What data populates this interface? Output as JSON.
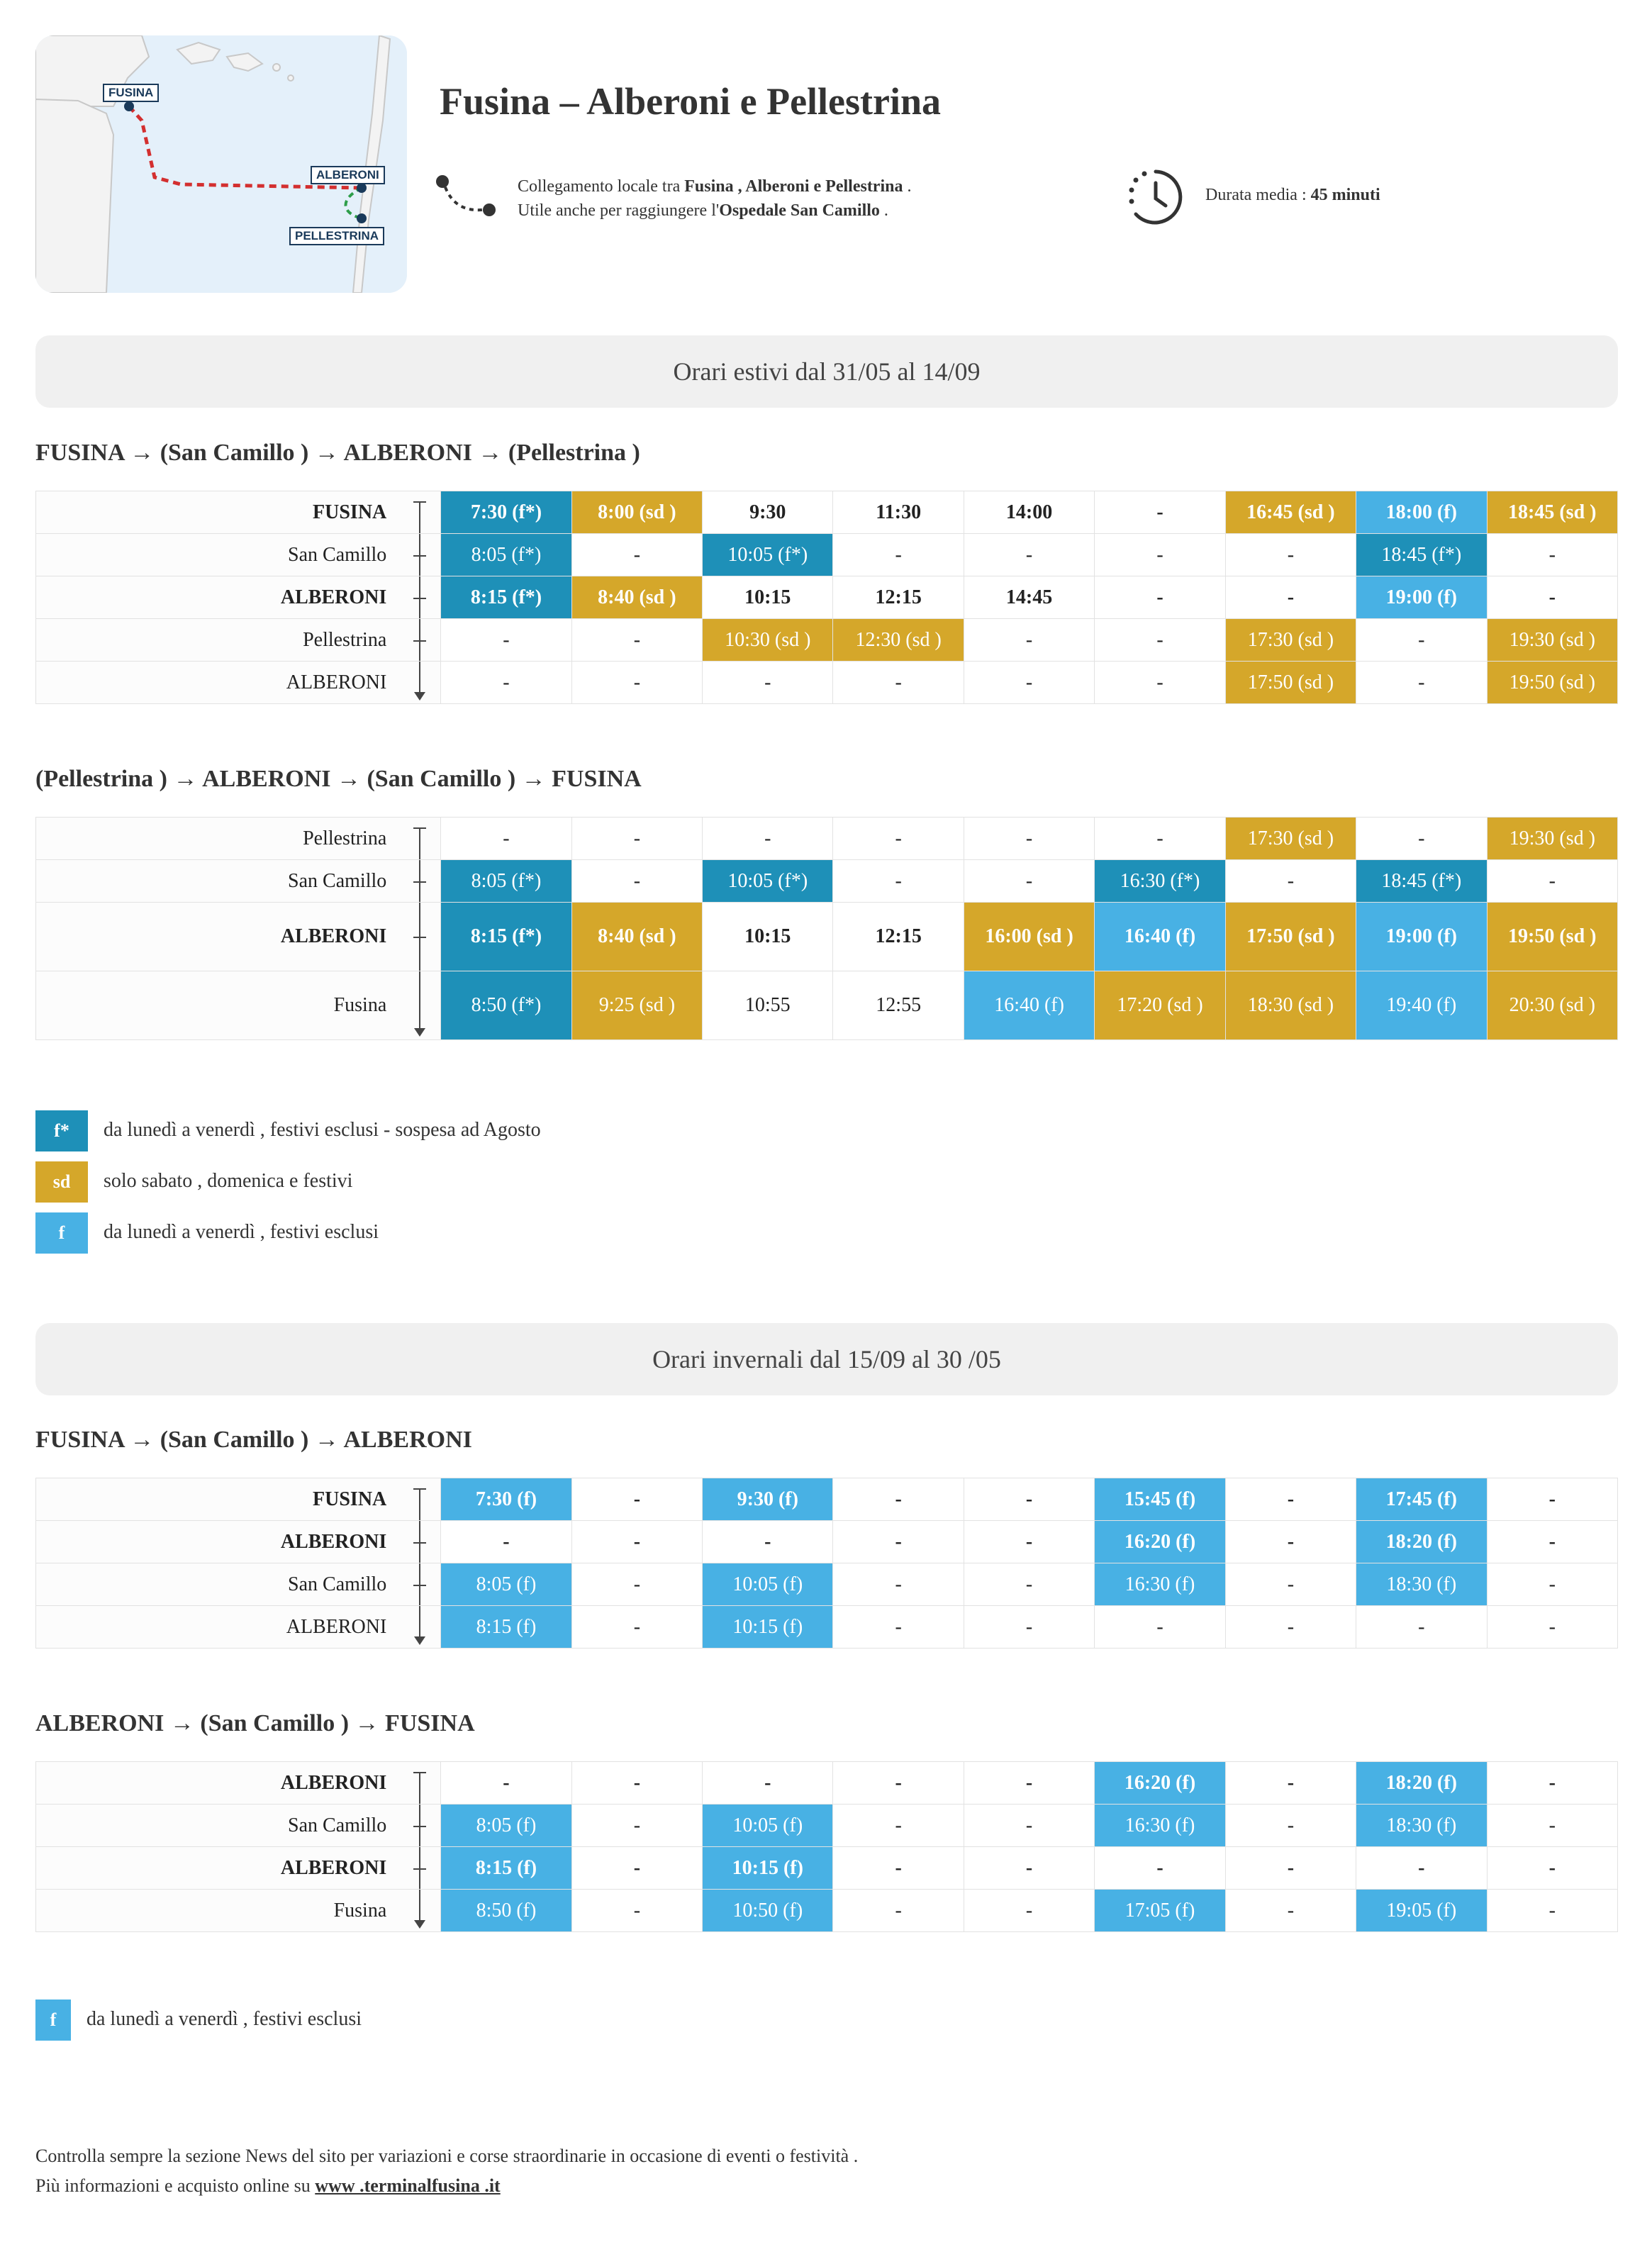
{
  "map": {
    "labels": [
      "FUSINA",
      "ALBERONI",
      "PELLESTRINA"
    ]
  },
  "header": {
    "title": "Fusina – Alberoni e Pellestrina",
    "info_line1_pre": "Collegamento locale tra ",
    "info_line1_bold": "Fusina , Alberoni e Pellestrina",
    "info_line1_post": " .",
    "info_line2_pre": "Utile anche per raggiungere l'",
    "info_line2_bold": "Ospedale San Camillo",
    "info_line2_post": " .",
    "duration_pre": "Durata media : ",
    "duration_bold": "45 minuti"
  },
  "summer": {
    "banner": "Orari estivi dal 31/05 al 14/09",
    "outbound_title": "FUSINA → (San Camillo ) → ALBERONI → (Pellestrina )",
    "outbound_rows": [
      {
        "stop": "FUSINA",
        "bold": true,
        "cells": [
          [
            "7:30 (f*)",
            "tl",
            1
          ],
          [
            "8:00 (sd )",
            "gd",
            1
          ],
          [
            "9:30",
            "",
            1
          ],
          [
            "11:30",
            "",
            1
          ],
          [
            "14:00",
            "",
            1
          ],
          [
            "-",
            "",
            1
          ],
          [
            "16:45 (sd )",
            "gd",
            1
          ],
          [
            "18:00 (f)",
            "lb",
            1
          ],
          [
            "18:45 (sd )",
            "gd",
            1
          ]
        ]
      },
      {
        "stop": "San Camillo",
        "bold": false,
        "cells": [
          [
            "8:05 (f*)",
            "tl",
            0
          ],
          [
            "-",
            "",
            0
          ],
          [
            "10:05 (f*)",
            "tl",
            0
          ],
          [
            "-",
            "",
            0
          ],
          [
            "-",
            "",
            0
          ],
          [
            "-",
            "",
            0
          ],
          [
            "-",
            "",
            0
          ],
          [
            "18:45 (f*)",
            "tl",
            0
          ],
          [
            "-",
            "",
            0
          ]
        ]
      },
      {
        "stop": "ALBERONI",
        "bold": true,
        "cells": [
          [
            "8:15 (f*)",
            "tl",
            1
          ],
          [
            "8:40 (sd )",
            "gd",
            1
          ],
          [
            "10:15",
            "",
            1
          ],
          [
            "12:15",
            "",
            1
          ],
          [
            "14:45",
            "",
            1
          ],
          [
            "-",
            "",
            1
          ],
          [
            "-",
            "",
            1
          ],
          [
            "19:00 (f)",
            "lb",
            1
          ],
          [
            "-",
            "",
            1
          ]
        ]
      },
      {
        "stop": "Pellestrina",
        "bold": false,
        "cells": [
          [
            "-",
            "",
            0
          ],
          [
            "-",
            "",
            0
          ],
          [
            "10:30 (sd )",
            "gd",
            0
          ],
          [
            "12:30 (sd )",
            "gd",
            0
          ],
          [
            "-",
            "",
            0
          ],
          [
            "-",
            "",
            0
          ],
          [
            "17:30 (sd )",
            "gd",
            0
          ],
          [
            "-",
            "",
            0
          ],
          [
            "19:30 (sd )",
            "gd",
            0
          ]
        ]
      },
      {
        "stop": "ALBERONI",
        "bold": false,
        "cells": [
          [
            "-",
            "",
            0
          ],
          [
            "-",
            "",
            0
          ],
          [
            "-",
            "",
            0
          ],
          [
            "-",
            "",
            0
          ],
          [
            "-",
            "",
            0
          ],
          [
            "-",
            "",
            0
          ],
          [
            "17:50 (sd )",
            "gd",
            0
          ],
          [
            "-",
            "",
            0
          ],
          [
            "19:50 (sd )",
            "gd",
            0
          ]
        ]
      }
    ],
    "return_title": "(Pellestrina ) → ALBERONI → (San Camillo ) → FUSINA",
    "return_rows": [
      {
        "stop": "Pellestrina",
        "bold": false,
        "cells": [
          [
            "-",
            "",
            0
          ],
          [
            "-",
            "",
            0
          ],
          [
            "-",
            "",
            0
          ],
          [
            "-",
            "",
            0
          ],
          [
            "-",
            "",
            0
          ],
          [
            "-",
            "",
            0
          ],
          [
            "17:30 (sd )",
            "gd",
            0
          ],
          [
            "-",
            "",
            0
          ],
          [
            "19:30 (sd )",
            "gd",
            0
          ]
        ]
      },
      {
        "stop": "San Camillo",
        "bold": false,
        "cells": [
          [
            "8:05 (f*)",
            "tl",
            0
          ],
          [
            "-",
            "",
            0
          ],
          [
            "10:05 (f*)",
            "tl",
            0
          ],
          [
            "-",
            "",
            0
          ],
          [
            "-",
            "",
            0
          ],
          [
            "16:30 (f*)",
            "tl",
            0
          ],
          [
            "-",
            "",
            0
          ],
          [
            "18:45 (f*)",
            "tl",
            0
          ],
          [
            "-",
            "",
            0
          ]
        ]
      },
      {
        "stop": "ALBERONI",
        "bold": true,
        "tall": true,
        "cells": [
          [
            "8:15 (f*)",
            "tl",
            1
          ],
          [
            "8:40 (sd )",
            "gd",
            1
          ],
          [
            "10:15",
            "",
            1
          ],
          [
            "12:15",
            "",
            1
          ],
          [
            "16:00 (sd )",
            "gd",
            1
          ],
          [
            "16:40 (f)",
            "lb",
            1
          ],
          [
            "17:50 (sd )",
            "gd",
            1
          ],
          [
            "19:00 (f)",
            "lb",
            1
          ],
          [
            "19:50 (sd )",
            "gd",
            1
          ]
        ]
      },
      {
        "stop": "Fusina",
        "bold": false,
        "tall": true,
        "cells": [
          [
            "8:50 (f*)",
            "tl",
            0
          ],
          [
            "9:25 (sd )",
            "gd",
            0
          ],
          [
            "10:55",
            "",
            0
          ],
          [
            "12:55",
            "",
            0
          ],
          [
            "16:40 (f)",
            "lb",
            0
          ],
          [
            "17:20 (sd )",
            "gd",
            0
          ],
          [
            "18:30 (sd )",
            "gd",
            0
          ],
          [
            "19:40 (f)",
            "lb",
            0
          ],
          [
            "20:30 (sd )",
            "gd",
            0
          ]
        ]
      }
    ],
    "legend": [
      {
        "code": "f*",
        "color": "#1e90b8",
        "text": "da lunedì a venerdì , festivi esclusi - sospesa ad Agosto"
      },
      {
        "code": "sd",
        "color": "#d5a72a",
        "text": "solo sabato , domenica e festivi"
      },
      {
        "code": "f",
        "color": "#48b1e4",
        "text": "da lunedì a venerdì , festivi esclusi"
      }
    ]
  },
  "winter": {
    "banner": "Orari invernali dal 15/09 al 30 /05",
    "outbound_title": "FUSINA → (San Camillo ) → ALBERONI",
    "outbound_rows": [
      {
        "stop": "FUSINA",
        "bold": true,
        "cells": [
          [
            "7:30 (f)",
            "lb",
            1
          ],
          [
            "-",
            "",
            1
          ],
          [
            "9:30 (f)",
            "lb",
            1
          ],
          [
            "-",
            "",
            1
          ],
          [
            "-",
            "",
            1
          ],
          [
            "15:45 (f)",
            "lb",
            1
          ],
          [
            "-",
            "",
            1
          ],
          [
            "17:45 (f)",
            "lb",
            1
          ],
          [
            "-",
            "",
            1
          ]
        ]
      },
      {
        "stop": "ALBERONI",
        "bold": true,
        "cells": [
          [
            "-",
            "",
            1
          ],
          [
            "-",
            "",
            1
          ],
          [
            "-",
            "",
            1
          ],
          [
            "-",
            "",
            1
          ],
          [
            "-",
            "",
            1
          ],
          [
            "16:20 (f)",
            "lb",
            1
          ],
          [
            "-",
            "",
            1
          ],
          [
            "18:20 (f)",
            "lb",
            1
          ],
          [
            "-",
            "",
            1
          ]
        ]
      },
      {
        "stop": "San Camillo",
        "bold": false,
        "cells": [
          [
            "8:05 (f)",
            "lb",
            0
          ],
          [
            "-",
            "",
            0
          ],
          [
            "10:05 (f)",
            "lb",
            0
          ],
          [
            "-",
            "",
            0
          ],
          [
            "-",
            "",
            0
          ],
          [
            "16:30 (f)",
            "lb",
            0
          ],
          [
            "-",
            "",
            0
          ],
          [
            "18:30 (f)",
            "lb",
            0
          ],
          [
            "-",
            "",
            0
          ]
        ]
      },
      {
        "stop": "ALBERONI",
        "bold": false,
        "cells": [
          [
            "8:15 (f)",
            "lb",
            0
          ],
          [
            "-",
            "",
            0
          ],
          [
            "10:15 (f)",
            "lb",
            0
          ],
          [
            "-",
            "",
            0
          ],
          [
            "-",
            "",
            0
          ],
          [
            "-",
            "",
            0
          ],
          [
            "-",
            "",
            0
          ],
          [
            "-",
            "",
            0
          ],
          [
            "-",
            "",
            0
          ]
        ]
      }
    ],
    "return_title": "ALBERONI → (San Camillo ) → FUSINA",
    "return_rows": [
      {
        "stop": "ALBERONI",
        "bold": true,
        "cells": [
          [
            "-",
            "",
            1
          ],
          [
            "-",
            "",
            1
          ],
          [
            "-",
            "",
            1
          ],
          [
            "-",
            "",
            1
          ],
          [
            "-",
            "",
            1
          ],
          [
            "16:20 (f)",
            "lb",
            1
          ],
          [
            "-",
            "",
            1
          ],
          [
            "18:20 (f)",
            "lb",
            1
          ],
          [
            "-",
            "",
            1
          ]
        ]
      },
      {
        "stop": "San Camillo",
        "bold": false,
        "cells": [
          [
            "8:05 (f)",
            "lb",
            0
          ],
          [
            "-",
            "",
            0
          ],
          [
            "10:05 (f)",
            "lb",
            0
          ],
          [
            "-",
            "",
            0
          ],
          [
            "-",
            "",
            0
          ],
          [
            "16:30 (f)",
            "lb",
            0
          ],
          [
            "-",
            "",
            0
          ],
          [
            "18:30 (f)",
            "lb",
            0
          ],
          [
            "-",
            "",
            0
          ]
        ]
      },
      {
        "stop": "ALBERONI",
        "bold": true,
        "cells": [
          [
            "8:15 (f)",
            "lb",
            1
          ],
          [
            "-",
            "",
            1
          ],
          [
            "10:15 (f)",
            "lb",
            1
          ],
          [
            "-",
            "",
            1
          ],
          [
            "-",
            "",
            1
          ],
          [
            "-",
            "",
            1
          ],
          [
            "-",
            "",
            1
          ],
          [
            "-",
            "",
            1
          ],
          [
            "-",
            "",
            1
          ]
        ]
      },
      {
        "stop": "Fusina",
        "bold": false,
        "cells": [
          [
            "8:50 (f)",
            "lb",
            0
          ],
          [
            "-",
            "",
            0
          ],
          [
            "10:50 (f)",
            "lb",
            0
          ],
          [
            "-",
            "",
            0
          ],
          [
            "-",
            "",
            0
          ],
          [
            "17:05 (f)",
            "lb",
            0
          ],
          [
            "-",
            "",
            0
          ],
          [
            "19:05 (f)",
            "lb",
            0
          ],
          [
            "-",
            "",
            0
          ]
        ]
      }
    ],
    "legend": [
      {
        "code": "f",
        "color": "#48b1e4",
        "text": "da lunedì a venerdì , festivi esclusi"
      }
    ]
  },
  "footer": {
    "line1": "Controlla sempre la sezione News del sito per variazioni e corse straordinarie in occasione di eventi o festività .",
    "line2_pre": "Più informazioni e acquisto online su ",
    "line2_link": "www .terminalfusina .it"
  }
}
